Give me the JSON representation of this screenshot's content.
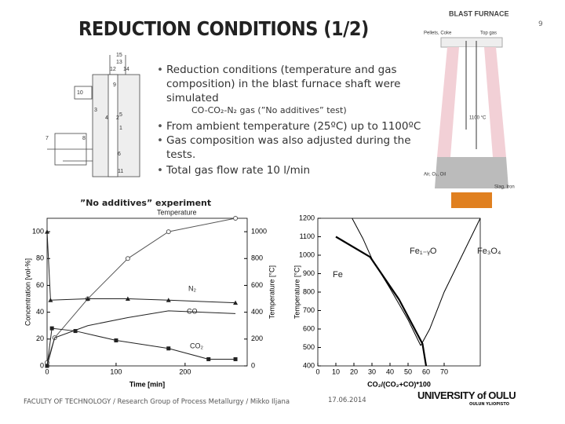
{
  "slide": {
    "title": "REDUCTION CONDITIONS (1/2)",
    "page_number": "9",
    "bullets": [
      "Reduction conditions (temperature and gas composition) in the blast furnace shaft were simulated",
      "From ambient temperature (25ºC) up to 1100ºC",
      "Gas composition was also adjusted during the tests.",
      "Total gas flow rate 10 l/min"
    ],
    "sub_bullet": "CO-CO₂-N₂ gas (”No additives” test)",
    "experiment_label": "”No additives” experiment",
    "footer": "FACULTY OF TECHNOLOGY / Research Group of Process Metallurgy / Mikko Iljana",
    "date": "17.06.2014",
    "university": "UNIVERSITY of OULU",
    "university_fi": "OULUN YLIOPISTO"
  },
  "furnace": {
    "title": "BLAST FURNACE",
    "labels": [
      "Pellets, Coke",
      "Top gas",
      "1100 °C",
      "Air, O₂, Oil",
      "Slag, Iron"
    ]
  },
  "apparatus": {
    "labels": [
      "15",
      "13",
      "12",
      "14",
      "9",
      "10",
      "4",
      "2",
      "5",
      "1",
      "3",
      "7",
      "8",
      "6",
      "11"
    ]
  },
  "chart_data": [
    {
      "type": "line",
      "xlabel": "Time [min]",
      "ylabel": "Concentration [vol-%]",
      "y2label": "Temperature [°C]",
      "xlim": [
        0,
        290
      ],
      "xticks": [
        0,
        100,
        200
      ],
      "ylim": [
        0,
        110
      ],
      "yticks": [
        0,
        20,
        40,
        60,
        80,
        100
      ],
      "y2lim": [
        0,
        1100
      ],
      "y2ticks": [
        0,
        200,
        400,
        600,
        800,
        1000
      ],
      "annotations": [
        "Temperature",
        "N₂",
        "CO",
        "CO₂"
      ],
      "series": [
        {
          "axis": "y2",
          "color": "#555555",
          "marker": "circle-open",
          "x": [
            0,
            11,
            59,
            117,
            176,
            273
          ],
          "values": [
            25,
            210,
            500,
            800,
            1000,
            1100
          ]
        },
        {
          "color": "#222222",
          "marker": "triangle",
          "x": [
            0,
            5,
            59,
            117,
            176,
            273
          ],
          "values": [
            100,
            49,
            50,
            50,
            49,
            47
          ]
        },
        {
          "color": "#222222",
          "marker": "none",
          "x": [
            0,
            11,
            59,
            117,
            176,
            273
          ],
          "values": [
            0,
            21,
            30,
            36,
            41,
            39
          ]
        },
        {
          "color": "#222222",
          "marker": "square",
          "x": [
            0,
            7,
            41,
            100,
            176,
            234,
            273
          ],
          "values": [
            0,
            28,
            26,
            19,
            13,
            5,
            5
          ]
        }
      ]
    },
    {
      "type": "line",
      "xlabel": "CO₂/(CO₂+CO)*100",
      "ylabel": "Temperature [°C]",
      "xlim": [
        0,
        90
      ],
      "xticks": [
        0,
        10,
        20,
        30,
        40,
        50,
        60,
        70
      ],
      "ylim": [
        400,
        1200
      ],
      "yticks": [
        400,
        500,
        600,
        700,
        800,
        900,
        1000,
        1100,
        1200
      ],
      "annotations": [
        "Fe₁₋ᵧO",
        "Fe₃O₄",
        "Fe"
      ],
      "series": [
        {
          "color": "#000000",
          "width": 2.2,
          "marker": "none",
          "x": [
            10,
            29,
            45,
            58,
            60
          ],
          "values": [
            1100,
            990,
            760,
            520,
            400
          ]
        },
        {
          "color": "#000000",
          "width": 1,
          "marker": "none",
          "x": [
            19,
            25,
            30,
            40,
            50,
            57
          ],
          "values": [
            1200,
            1090,
            980,
            820,
            650,
            510
          ]
        },
        {
          "color": "#000000",
          "width": 1,
          "marker": "none",
          "x": [
            57,
            62,
            70,
            80,
            90
          ],
          "values": [
            510,
            600,
            800,
            1000,
            1200
          ]
        }
      ]
    }
  ]
}
